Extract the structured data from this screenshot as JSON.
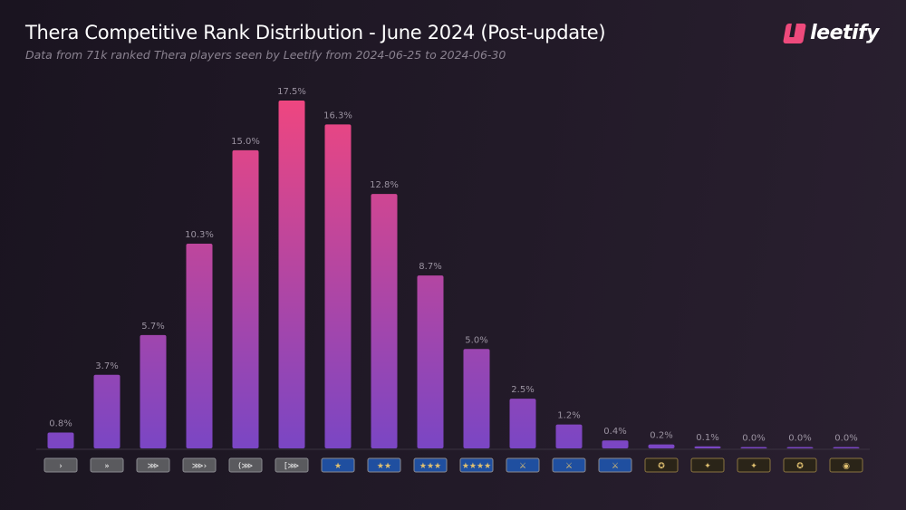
{
  "header": {
    "title": "Thera Competitive Rank Distribution - June 2024 (Post-update)",
    "subtitle": "Data from 71k ranked Thera players seen by Leetify from 2024-06-25 to 2024-06-30",
    "logo": "leetify"
  },
  "chart_data": {
    "type": "bar",
    "title": "Thera Competitive Rank Distribution - June 2024 (Post-update)",
    "subtitle": "Data from 71k ranked Thera players seen by Leetify from 2024-06-25 to 2024-06-30",
    "categories": [
      "Silver I",
      "Silver II",
      "Silver III",
      "Silver IV",
      "Silver Elite",
      "Silver Elite Master",
      "Gold Nova I",
      "Gold Nova II",
      "Gold Nova III",
      "Gold Nova Master",
      "Master Guardian I",
      "Master Guardian II",
      "Master Guardian Elite",
      "Distinguished Master Guardian",
      "Legendary Eagle",
      "Legendary Eagle Master",
      "Supreme Master First Class",
      "The Global Elite"
    ],
    "category_display": "rank badge icons",
    "values": [
      0.8,
      3.7,
      5.7,
      10.3,
      15.0,
      17.5,
      16.3,
      12.8,
      8.7,
      5.0,
      2.5,
      1.2,
      0.4,
      0.2,
      0.1,
      0.0,
      0.0,
      0.0
    ],
    "labels": [
      "0.8%",
      "3.7%",
      "5.7%",
      "10.3%",
      "15.0%",
      "17.5%",
      "16.3%",
      "12.8%",
      "8.7%",
      "5.0%",
      "2.5%",
      "1.2%",
      "0.4%",
      "0.2%",
      "0.1%",
      "0.0%",
      "0.0%",
      "0.0%"
    ],
    "unit": "%",
    "ylim": [
      0,
      17.5
    ],
    "grid": false,
    "colors": {
      "bottom": "#7a46c4",
      "top": "#ee4680"
    },
    "badge_colors": [
      "#5a5a5e",
      "#5a5a5e",
      "#5a5a5e",
      "#5a5a5e",
      "#5a5a5e",
      "#5a5a5e",
      "#1f4fa0",
      "#1f4fa0",
      "#1f4fa0",
      "#1f4fa0",
      "#1f4fa0",
      "#1f4fa0",
      "#1f4fa0",
      "#2a2418",
      "#2a2418",
      "#2a2418",
      "#2a2418",
      "#2a2418"
    ]
  }
}
